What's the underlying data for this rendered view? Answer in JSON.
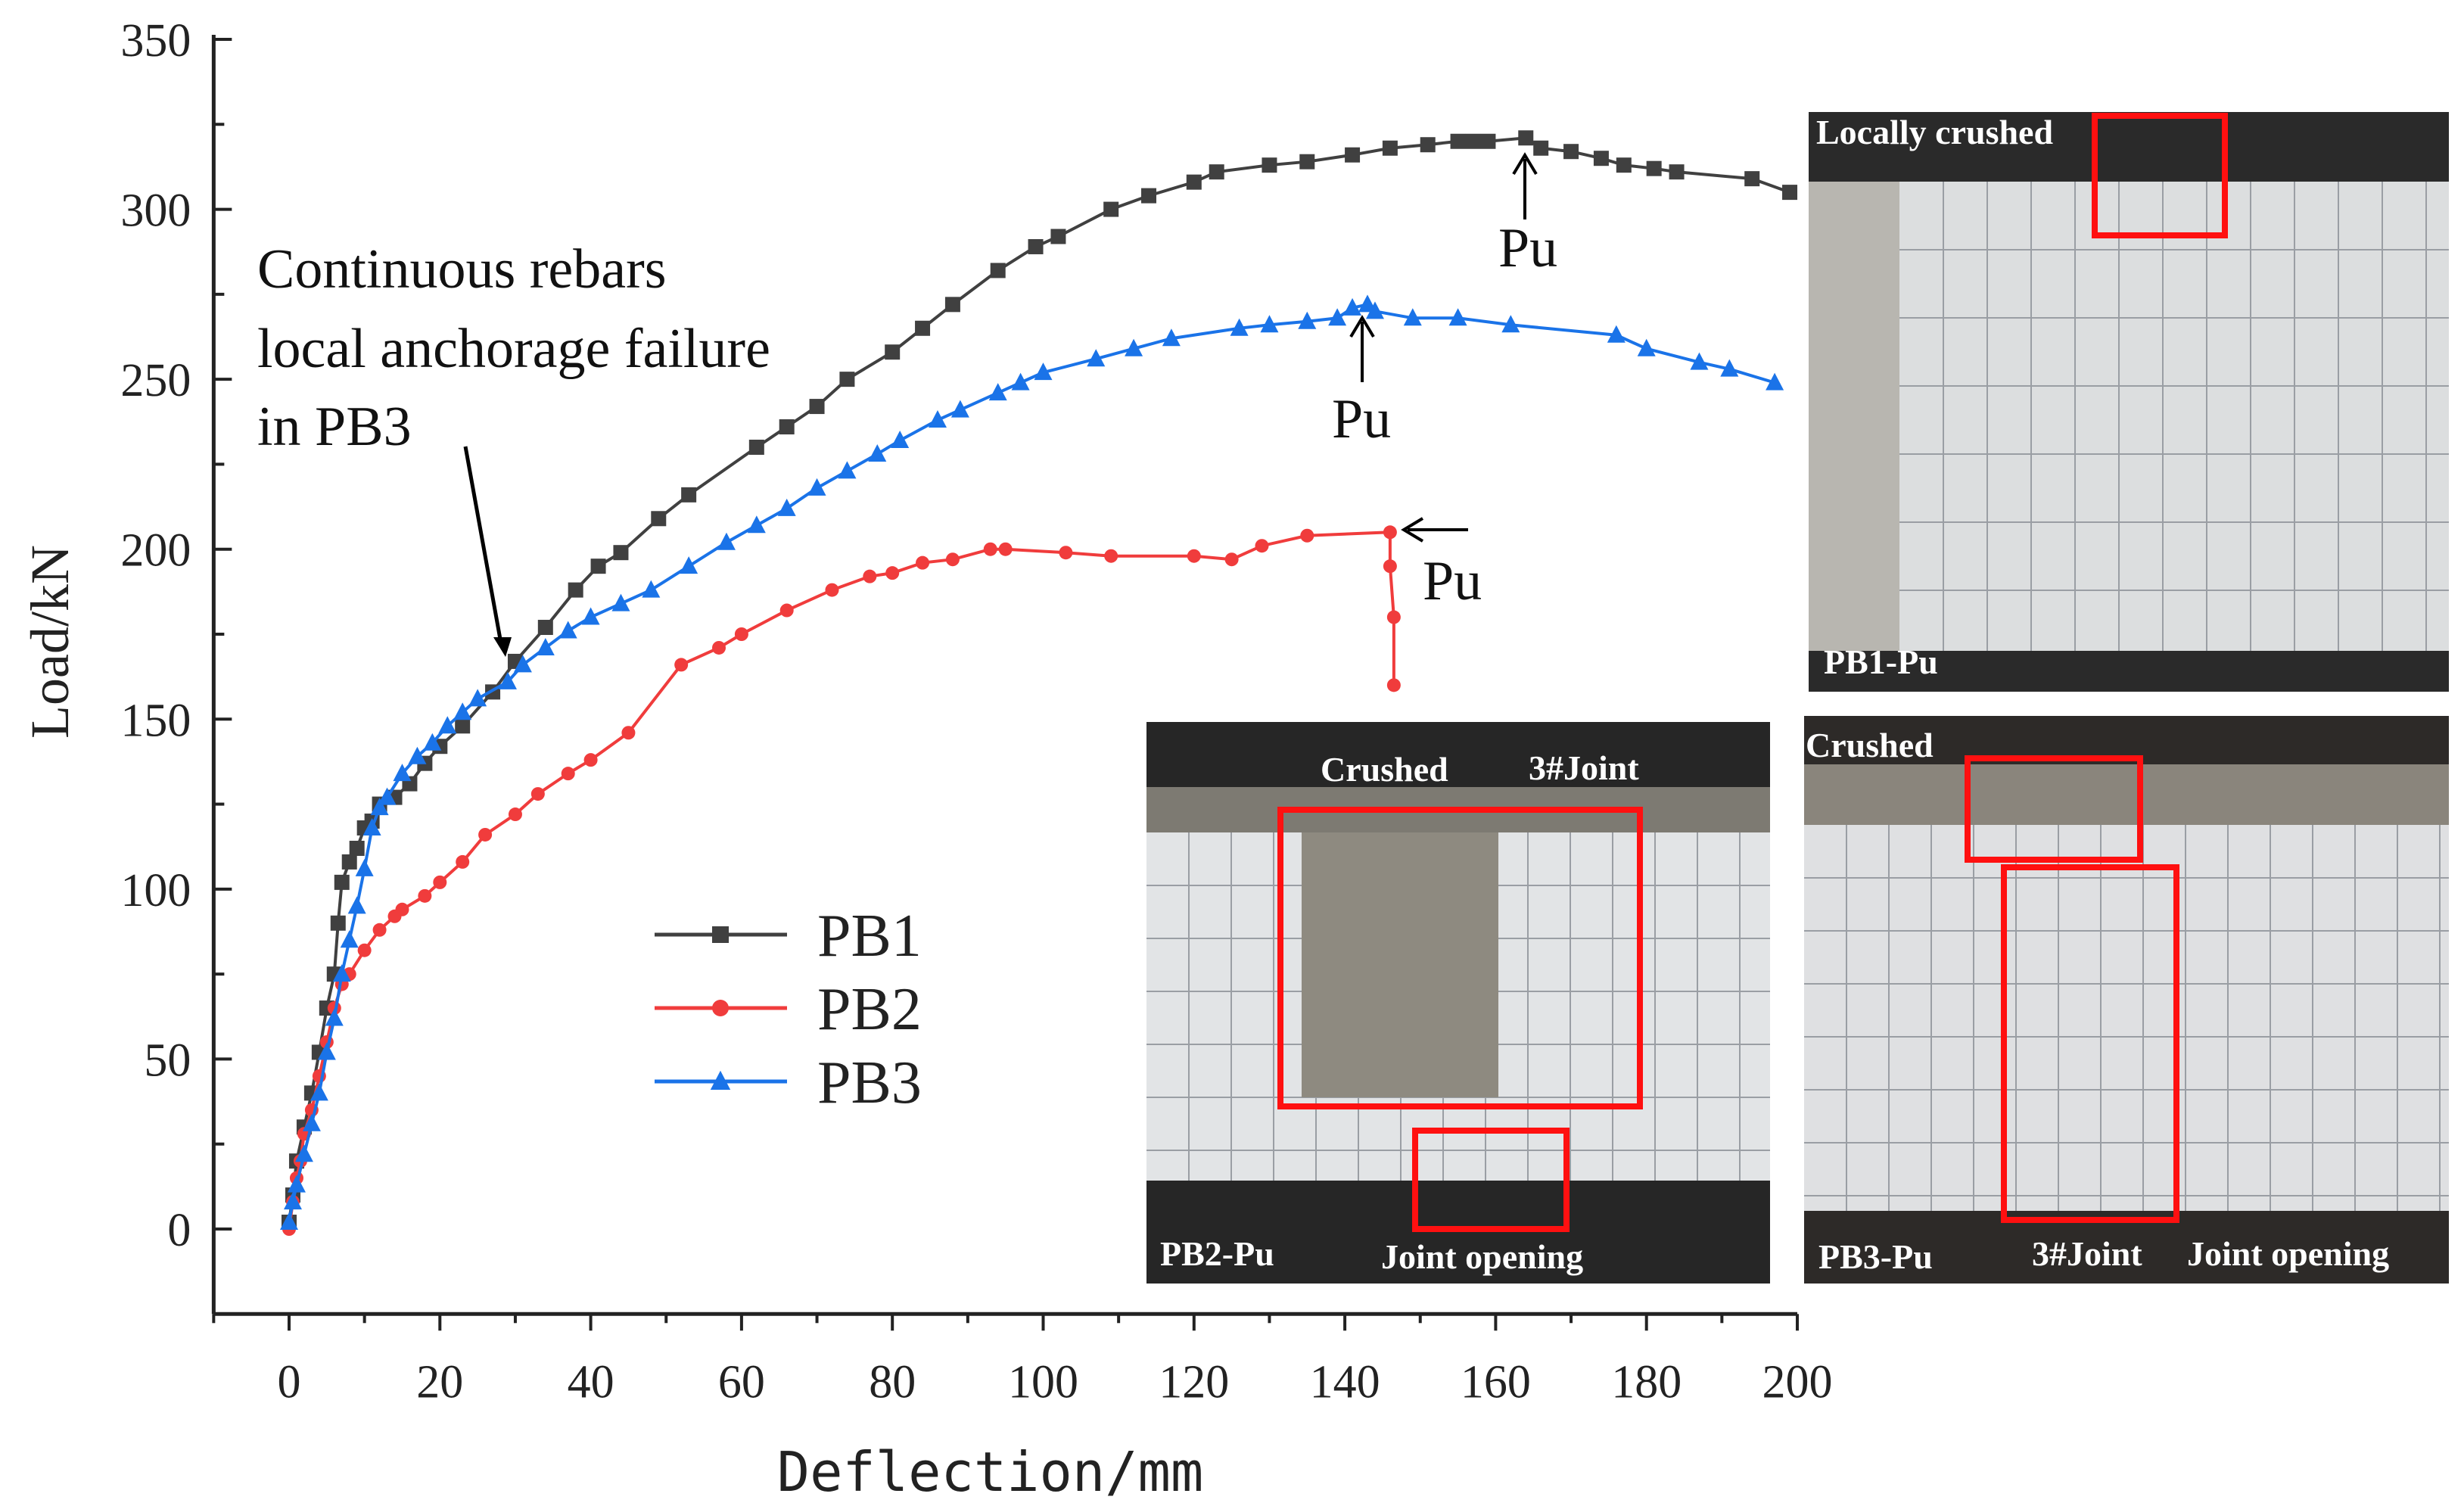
{
  "chart_data": {
    "type": "line",
    "xlabel": "Deflection/mm",
    "ylabel": "Load/kN",
    "xlim": [
      -10,
      200
    ],
    "ylim": [
      -25,
      350
    ],
    "xticks": [
      0,
      20,
      40,
      60,
      80,
      100,
      120,
      140,
      160,
      180,
      200
    ],
    "yticks": [
      0,
      50,
      100,
      150,
      200,
      250,
      300,
      350
    ],
    "grid": false,
    "legend": "center-left",
    "series": [
      {
        "name": "PB1",
        "color": "#404040",
        "marker": "square",
        "points": [
          [
            0,
            2
          ],
          [
            0.5,
            10
          ],
          [
            1,
            20
          ],
          [
            2,
            30
          ],
          [
            3,
            40
          ],
          [
            4,
            52
          ],
          [
            5,
            65
          ],
          [
            6,
            75
          ],
          [
            6.5,
            90
          ],
          [
            7,
            102
          ],
          [
            8,
            108
          ],
          [
            9,
            112
          ],
          [
            10,
            118
          ],
          [
            11,
            120
          ],
          [
            12,
            125
          ],
          [
            14,
            127
          ],
          [
            16,
            131
          ],
          [
            18,
            137
          ],
          [
            20,
            142
          ],
          [
            23,
            148
          ],
          [
            27,
            158
          ],
          [
            30,
            167
          ],
          [
            34,
            177
          ],
          [
            38,
            188
          ],
          [
            41,
            195
          ],
          [
            44,
            199
          ],
          [
            49,
            209
          ],
          [
            53,
            216
          ],
          [
            62,
            230
          ],
          [
            66,
            236
          ],
          [
            70,
            242
          ],
          [
            74,
            250
          ],
          [
            80,
            258
          ],
          [
            84,
            265
          ],
          [
            88,
            272
          ],
          [
            94,
            282
          ],
          [
            99,
            289
          ],
          [
            102,
            292
          ],
          [
            109,
            300
          ],
          [
            114,
            304
          ],
          [
            120,
            308
          ],
          [
            123,
            311
          ],
          [
            130,
            313
          ],
          [
            135,
            314
          ],
          [
            141,
            316
          ],
          [
            146,
            318
          ],
          [
            151,
            319
          ],
          [
            155,
            320
          ],
          [
            157,
            320
          ],
          [
            159,
            320
          ],
          [
            164,
            321
          ],
          [
            166,
            318
          ],
          [
            170,
            317
          ],
          [
            174,
            315
          ],
          [
            177,
            313
          ],
          [
            181,
            312
          ],
          [
            184,
            311
          ],
          [
            194,
            309
          ],
          [
            199,
            305
          ]
        ]
      },
      {
        "name": "PB2",
        "color": "#f03c3c",
        "marker": "circle",
        "points": [
          [
            0,
            0
          ],
          [
            0.5,
            8
          ],
          [
            1,
            15
          ],
          [
            1.5,
            20
          ],
          [
            2,
            28
          ],
          [
            3,
            35
          ],
          [
            4,
            45
          ],
          [
            5,
            55
          ],
          [
            6,
            65
          ],
          [
            7,
            72
          ],
          [
            8,
            75
          ],
          [
            10,
            82
          ],
          [
            12,
            88
          ],
          [
            14,
            92
          ],
          [
            15,
            94
          ],
          [
            18,
            98
          ],
          [
            20,
            102
          ],
          [
            23,
            108
          ],
          [
            26,
            116
          ],
          [
            30,
            122
          ],
          [
            33,
            128
          ],
          [
            37,
            134
          ],
          [
            40,
            138
          ],
          [
            45,
            146
          ],
          [
            52,
            166
          ],
          [
            57,
            171
          ],
          [
            60,
            175
          ],
          [
            66,
            182
          ],
          [
            72,
            188
          ],
          [
            77,
            192
          ],
          [
            80,
            193
          ],
          [
            84,
            196
          ],
          [
            88,
            197
          ],
          [
            93,
            200
          ],
          [
            95,
            200
          ],
          [
            103,
            199
          ],
          [
            109,
            198
          ],
          [
            120,
            198
          ],
          [
            125,
            197
          ],
          [
            129,
            201
          ],
          [
            135,
            204
          ],
          [
            146,
            205
          ],
          [
            146,
            195
          ],
          [
            146.5,
            180
          ],
          [
            146.5,
            160
          ]
        ]
      },
      {
        "name": "PB3",
        "color": "#1a73e8",
        "marker": "triangle",
        "points": [
          [
            0,
            2
          ],
          [
            0.5,
            8
          ],
          [
            1,
            13
          ],
          [
            2,
            22
          ],
          [
            3,
            31
          ],
          [
            4,
            40
          ],
          [
            5,
            52
          ],
          [
            6,
            62
          ],
          [
            7,
            75
          ],
          [
            8,
            85
          ],
          [
            9,
            95
          ],
          [
            10,
            106
          ],
          [
            11,
            118
          ],
          [
            12,
            124
          ],
          [
            13,
            127
          ],
          [
            15,
            134
          ],
          [
            17,
            139
          ],
          [
            19,
            143
          ],
          [
            21,
            148
          ],
          [
            23,
            152
          ],
          [
            25,
            156
          ],
          [
            29,
            161
          ],
          [
            31,
            166
          ],
          [
            34,
            171
          ],
          [
            37,
            176
          ],
          [
            40,
            180
          ],
          [
            44,
            184
          ],
          [
            48,
            188
          ],
          [
            53,
            195
          ],
          [
            58,
            202
          ],
          [
            62,
            207
          ],
          [
            66,
            212
          ],
          [
            70,
            218
          ],
          [
            74,
            223
          ],
          [
            78,
            228
          ],
          [
            81,
            232
          ],
          [
            86,
            238
          ],
          [
            89,
            241
          ],
          [
            94,
            246
          ],
          [
            97,
            249
          ],
          [
            100,
            252
          ],
          [
            107,
            256
          ],
          [
            112,
            259
          ],
          [
            117,
            262
          ],
          [
            126,
            265
          ],
          [
            130,
            266
          ],
          [
            135,
            267
          ],
          [
            139,
            268
          ],
          [
            141,
            271
          ],
          [
            143,
            272
          ],
          [
            144,
            270
          ],
          [
            149,
            268
          ],
          [
            155,
            268
          ],
          [
            162,
            266
          ],
          [
            176,
            263
          ],
          [
            180,
            259
          ],
          [
            187,
            255
          ],
          [
            191,
            253
          ],
          [
            197,
            249
          ]
        ]
      }
    ],
    "annotations": {
      "anchorage": [
        "Continuous rebars",
        "local anchorage failure",
        "in PB3"
      ],
      "pu1": "Pu",
      "pu2": "Pu",
      "pu3": "Pu"
    }
  },
  "photos": {
    "pb1": {
      "labels": [
        "Locally crushed",
        "PB1-Pu"
      ]
    },
    "pb2": {
      "labels": [
        "Crushed",
        "3#Joint",
        "PB2-Pu",
        "Joint opening"
      ]
    },
    "pb3": {
      "labels": [
        "Crushed",
        "PB3-Pu",
        "3#Joint",
        "Joint opening"
      ]
    },
    "highlight_color": "#ff1010"
  }
}
